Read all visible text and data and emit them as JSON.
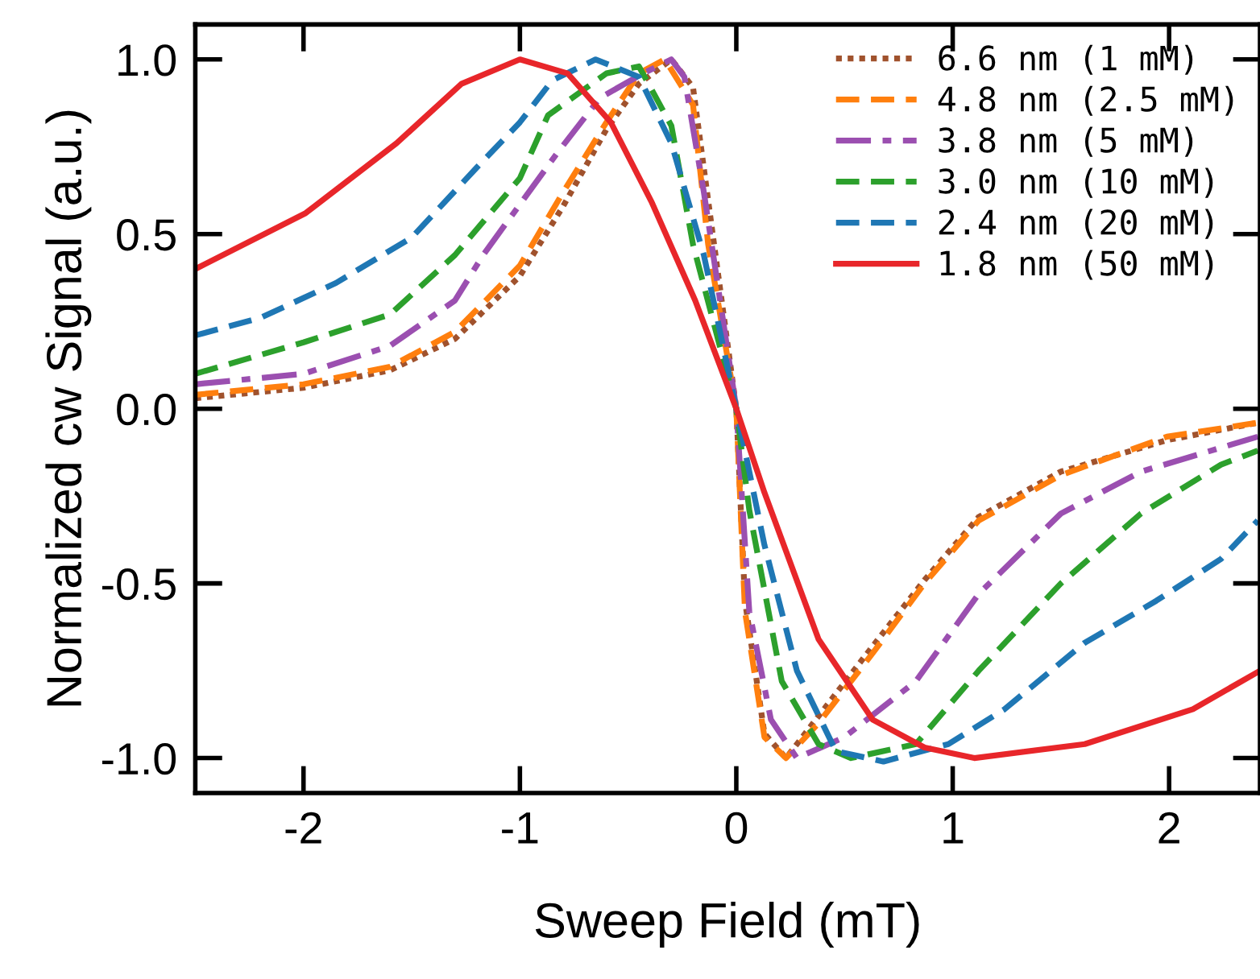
{
  "chart_data": {
    "type": "line",
    "xlabel": "Sweep Field (mT)",
    "ylabel": "Normalized cw Signal (a.u.)",
    "xlim": [
      -2.5,
      2.42
    ],
    "ylim": [
      -1.1,
      1.1
    ],
    "xticks": [
      -2,
      -1,
      0,
      1,
      2
    ],
    "yticks": [
      {
        "value": -1.0,
        "label": "-1.0"
      },
      {
        "value": -0.5,
        "label": "-0.5"
      },
      {
        "value": 0.0,
        "label": "0.0"
      },
      {
        "value": 0.5,
        "label": "0.5"
      },
      {
        "value": 1.0,
        "label": "1.0"
      }
    ],
    "grid": false,
    "legend": "top right",
    "marker": "none",
    "series": [
      {
        "name": "6.6 nm (1 mM)",
        "color": "#a0522d",
        "line_style": "dotted",
        "x": [
          -2.5,
          -2.0,
          -1.6,
          -1.3,
          -1.0,
          -0.8,
          -0.6,
          -0.45,
          -0.3,
          -0.2,
          -0.12,
          0,
          0.04,
          0.13,
          0.23,
          0.38,
          0.63,
          0.87,
          1.12,
          1.5,
          1.99,
          2.41
        ],
        "values": [
          0.03,
          0.06,
          0.11,
          0.2,
          0.38,
          0.58,
          0.8,
          0.93,
          1.0,
          0.92,
          0.55,
          0,
          -0.55,
          -0.93,
          -1.0,
          -0.88,
          -0.68,
          -0.49,
          -0.31,
          -0.18,
          -0.09,
          -0.04
        ]
      },
      {
        "name": "4.8 nm (2.5 mM)",
        "color": "#ff7f0e",
        "line_style": "dashed",
        "x": [
          -2.5,
          -2.0,
          -1.6,
          -1.3,
          -1.0,
          -0.8,
          -0.6,
          -0.45,
          -0.33,
          -0.2,
          -0.13,
          0,
          0.04,
          0.13,
          0.23,
          0.38,
          0.63,
          0.87,
          1.12,
          1.5,
          1.99,
          2.41
        ],
        "values": [
          0.04,
          0.07,
          0.12,
          0.22,
          0.41,
          0.62,
          0.82,
          0.96,
          1.0,
          0.87,
          0.47,
          0,
          -0.58,
          -0.94,
          -1.0,
          -0.9,
          -0.7,
          -0.5,
          -0.32,
          -0.19,
          -0.08,
          -0.04
        ]
      },
      {
        "name": "3.8 nm (5 mM)",
        "color": "#9b4fb0",
        "line_style": "dashdot",
        "x": [
          -2.5,
          -2.0,
          -1.6,
          -1.3,
          -1.17,
          -0.83,
          -0.63,
          -0.43,
          -0.3,
          -0.24,
          -0.15,
          0,
          0.06,
          0.16,
          0.28,
          0.5,
          0.83,
          1.12,
          1.5,
          1.87,
          2.41
        ],
        "values": [
          0.07,
          0.1,
          0.18,
          0.31,
          0.44,
          0.73,
          0.89,
          0.96,
          1.0,
          0.95,
          0.62,
          0,
          -0.58,
          -0.89,
          -1.0,
          -0.94,
          -0.78,
          -0.53,
          -0.3,
          -0.18,
          -0.08
        ]
      },
      {
        "name": "3.0 nm (10 mM)",
        "color": "#2ca02c",
        "line_style": "dashed",
        "x": [
          -2.5,
          -2.0,
          -1.6,
          -1.3,
          -1.0,
          -0.87,
          -0.6,
          -0.45,
          -0.3,
          -0.2,
          0,
          0.06,
          0.21,
          0.38,
          0.53,
          0.83,
          1.12,
          1.5,
          1.87,
          2.24,
          2.41
        ],
        "values": [
          0.1,
          0.19,
          0.27,
          0.44,
          0.66,
          0.84,
          0.96,
          0.98,
          0.81,
          0.47,
          0,
          -0.29,
          -0.78,
          -0.96,
          -1.0,
          -0.96,
          -0.75,
          -0.5,
          -0.3,
          -0.16,
          -0.12
        ]
      },
      {
        "name": "2.4 nm (20 mM)",
        "color": "#1f77b4",
        "line_style": "dashed",
        "x": [
          -2.5,
          -2.2,
          -1.85,
          -1.5,
          -1.2,
          -1.0,
          -0.85,
          -0.65,
          -0.45,
          -0.3,
          -0.15,
          0,
          0.13,
          0.28,
          0.46,
          0.68,
          0.98,
          1.24,
          1.61,
          1.94,
          2.24,
          2.41
        ],
        "values": [
          0.21,
          0.26,
          0.36,
          0.49,
          0.69,
          0.82,
          0.94,
          1.0,
          0.95,
          0.76,
          0.44,
          0,
          -0.39,
          -0.75,
          -0.98,
          -1.01,
          -0.96,
          -0.86,
          -0.67,
          -0.55,
          -0.43,
          -0.32
        ]
      },
      {
        "name": "1.8 nm (50 mM)",
        "color": "#e8262a",
        "line_style": "solid",
        "x": [
          -2.5,
          -1.99,
          -1.57,
          -1.27,
          -1.0,
          -0.78,
          -0.58,
          -0.39,
          -0.19,
          0,
          0.13,
          0.38,
          0.63,
          0.87,
          1.1,
          1.61,
          2.11,
          2.42
        ],
        "values": [
          0.4,
          0.56,
          0.76,
          0.93,
          1.0,
          0.96,
          0.82,
          0.59,
          0.31,
          0,
          -0.24,
          -0.66,
          -0.89,
          -0.97,
          -1.0,
          -0.96,
          -0.86,
          -0.75
        ]
      }
    ]
  }
}
